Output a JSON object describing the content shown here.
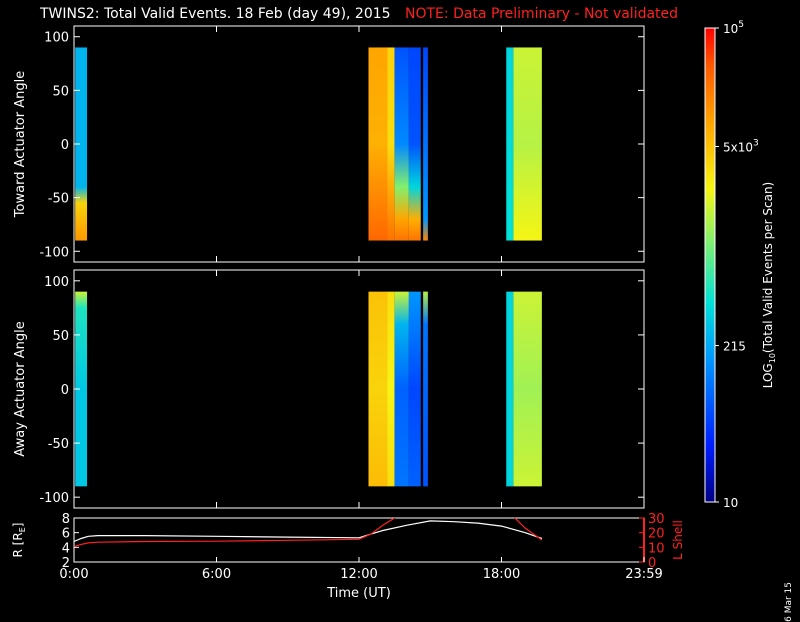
{
  "title": {
    "main": "TWINS2: Total Valid Events. 18 Feb (day  49), 2015",
    "note": "NOTE: Data Preliminary - Not validated"
  },
  "date_stamp": "6 Mar 15",
  "colors": {
    "background": "#000000",
    "axes": "#ffffff",
    "note": "#ff2020",
    "r_line": "#ffffff",
    "lshell_line": "#ff2020"
  },
  "chart_data": [
    {
      "type": "heatmap",
      "panel": "toward",
      "ylabel": "Toward Actuator Angle",
      "ylim": [
        -110,
        110
      ],
      "yticks": [
        100,
        50,
        0,
        -50,
        -100
      ],
      "xlim_hours": [
        0,
        24
      ],
      "angle_range": [
        -90,
        90
      ],
      "blocks": [
        {
          "start": 0.05,
          "end": 0.55,
          "levels": [
            [
              90,
              0.35
            ],
            [
              -40,
              0.35
            ],
            [
              -55,
              0.72
            ],
            [
              -90,
              0.82
            ]
          ]
        },
        {
          "start": 12.4,
          "end": 13.2,
          "levels": [
            [
              90,
              0.8
            ],
            [
              0,
              0.78
            ],
            [
              -90,
              0.9
            ]
          ]
        },
        {
          "start": 13.2,
          "end": 13.5,
          "levels": [
            [
              90,
              0.72
            ],
            [
              0,
              0.7
            ],
            [
              -90,
              0.88
            ]
          ]
        },
        {
          "start": 13.5,
          "end": 14.1,
          "levels": [
            [
              90,
              0.2
            ],
            [
              0,
              0.28
            ],
            [
              -40,
              0.55
            ],
            [
              -70,
              0.8
            ],
            [
              -90,
              0.88
            ]
          ]
        },
        {
          "start": 14.1,
          "end": 14.6,
          "levels": [
            [
              90,
              0.18
            ],
            [
              0,
              0.2
            ],
            [
              -40,
              0.4
            ],
            [
              -70,
              0.78
            ],
            [
              -90,
              0.88
            ]
          ]
        },
        {
          "start": 14.7,
          "end": 14.9,
          "levels": [
            [
              90,
              0.18
            ],
            [
              -70,
              0.3
            ],
            [
              -90,
              0.85
            ]
          ]
        },
        {
          "start": 18.2,
          "end": 18.5,
          "levels": [
            [
              90,
              0.4
            ],
            [
              -90,
              0.42
            ]
          ]
        },
        {
          "start": 18.5,
          "end": 19.7,
          "levels": [
            [
              90,
              0.62
            ],
            [
              0,
              0.6
            ],
            [
              -90,
              0.66
            ]
          ]
        }
      ]
    },
    {
      "type": "heatmap",
      "panel": "away",
      "ylabel": "Away Actuator Angle",
      "ylim": [
        -110,
        110
      ],
      "yticks": [
        100,
        50,
        0,
        -50,
        -100
      ],
      "xlim_hours": [
        0,
        24
      ],
      "angle_range": [
        -90,
        90
      ],
      "blocks": [
        {
          "start": 0.05,
          "end": 0.55,
          "levels": [
            [
              90,
              0.62
            ],
            [
              75,
              0.45
            ],
            [
              0,
              0.38
            ],
            [
              -90,
              0.38
            ]
          ]
        },
        {
          "start": 12.4,
          "end": 13.2,
          "levels": [
            [
              90,
              0.75
            ],
            [
              0,
              0.72
            ],
            [
              -90,
              0.76
            ]
          ]
        },
        {
          "start": 13.2,
          "end": 13.5,
          "levels": [
            [
              90,
              0.7
            ],
            [
              0,
              0.66
            ],
            [
              -90,
              0.7
            ]
          ]
        },
        {
          "start": 13.5,
          "end": 14.1,
          "levels": [
            [
              90,
              0.62
            ],
            [
              60,
              0.35
            ],
            [
              0,
              0.22
            ],
            [
              -90,
              0.25
            ]
          ]
        },
        {
          "start": 14.1,
          "end": 14.6,
          "levels": [
            [
              90,
              0.3
            ],
            [
              0,
              0.18
            ],
            [
              -90,
              0.22
            ]
          ]
        },
        {
          "start": 14.7,
          "end": 14.9,
          "levels": [
            [
              90,
              0.6
            ],
            [
              60,
              0.25
            ],
            [
              -90,
              0.2
            ]
          ]
        },
        {
          "start": 18.2,
          "end": 18.5,
          "levels": [
            [
              90,
              0.4
            ],
            [
              -90,
              0.4
            ]
          ]
        },
        {
          "start": 18.5,
          "end": 19.7,
          "levels": [
            [
              90,
              0.62
            ],
            [
              0,
              0.58
            ],
            [
              -90,
              0.62
            ]
          ]
        }
      ]
    },
    {
      "type": "line",
      "panel": "ephemeris",
      "xlabel": "Time (UT)",
      "xticks": [
        "0:00",
        "6:00",
        "12:00",
        "18:00",
        "23:59"
      ],
      "xtick_hours": [
        0,
        6,
        12,
        18,
        24
      ],
      "left_axis": {
        "label": "R [R",
        "label_sub": "E",
        "label_close": "]",
        "ylim": [
          2,
          8
        ],
        "ticks": [
          8,
          6,
          4,
          2
        ]
      },
      "right_axis": {
        "label": "L Shell",
        "ylim": [
          0,
          30
        ],
        "ticks": [
          30,
          20,
          10,
          0
        ]
      },
      "series": [
        {
          "axis": "left",
          "color": "#ffffff",
          "x": [
            0,
            0.3,
            0.6,
            1,
            3,
            6,
            9,
            12,
            12.5,
            13,
            14,
            15,
            16,
            17,
            18,
            19,
            19.7
          ],
          "y": [
            4.8,
            5.2,
            5.5,
            5.6,
            5.6,
            5.5,
            5.4,
            5.3,
            5.8,
            6.3,
            7.0,
            7.6,
            7.5,
            7.3,
            6.9,
            6.0,
            5.2
          ]
        },
        {
          "axis": "right",
          "color": "#ff2020",
          "x": [
            0,
            0.3,
            0.6,
            1,
            3,
            6,
            9,
            12,
            12.5,
            13,
            13.6
          ],
          "y": [
            10.5,
            12.0,
            13.0,
            13.5,
            14.0,
            14.2,
            14.8,
            15.5,
            19,
            25,
            31
          ]
        },
        {
          "axis": "right",
          "color": "#ff2020",
          "x": [
            18.5,
            19,
            19.7
          ],
          "y": [
            31,
            23,
            15
          ]
        }
      ]
    },
    {
      "type": "colorbar",
      "label": "LOG",
      "label_sub": "10",
      "label_rest": "(Total Valid  Events per Scan)",
      "ticks": [
        {
          "text": "10",
          "exp": "5",
          "frac": 1.0
        },
        {
          "text": "5x10",
          "exp": "3",
          "frac": 0.75
        },
        {
          "text": "215",
          "exp": "",
          "frac": 0.33
        },
        {
          "text": "10",
          "exp": "",
          "frac": 0.0
        }
      ]
    }
  ]
}
